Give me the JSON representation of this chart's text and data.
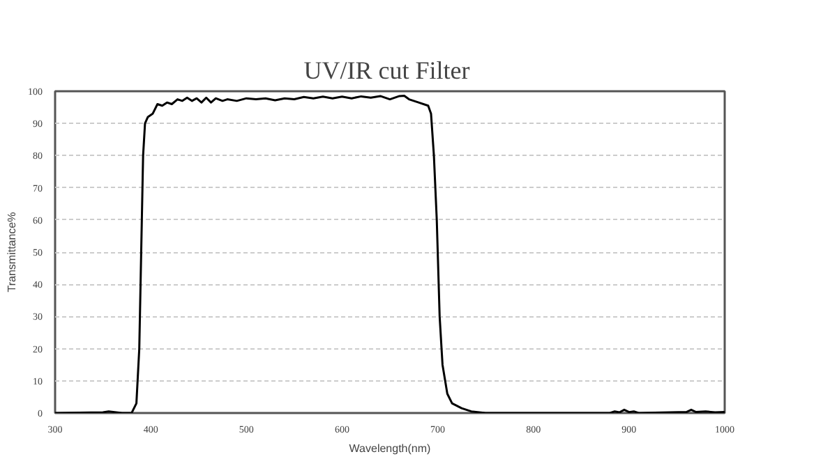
{
  "chart_data": {
    "type": "line",
    "title": "UV/IR cut  Filter",
    "xlabel": "Wavelength(nm)",
    "ylabel": "Transmittance%",
    "x": [
      300,
      350,
      356,
      370,
      380,
      385,
      388,
      390,
      392,
      394,
      397,
      402,
      407,
      412,
      417,
      422,
      428,
      433,
      438,
      443,
      448,
      453,
      458,
      463,
      468,
      475,
      480,
      490,
      500,
      510,
      520,
      530,
      540,
      550,
      560,
      570,
      580,
      590,
      600,
      610,
      620,
      630,
      640,
      650,
      660,
      665,
      670,
      680,
      690,
      693,
      696,
      699,
      702,
      705,
      710,
      715,
      725,
      735,
      750,
      800,
      880,
      885,
      890,
      895,
      900,
      905,
      910,
      960,
      965,
      970,
      980,
      990,
      1000
    ],
    "series": [
      {
        "color": "#000000",
        "values": [
          0,
          0.2,
          0.5,
          0,
          0,
          3,
          20,
          50,
          80,
          90,
          92,
          93,
          96,
          95.5,
          96.5,
          96,
          97.5,
          97,
          98,
          97,
          97.8,
          96.5,
          98,
          96.5,
          97.8,
          97,
          97.5,
          97,
          97.8,
          97.5,
          97.8,
          97.2,
          97.8,
          97.5,
          98.2,
          97.8,
          98.3,
          97.8,
          98.3,
          97.8,
          98.4,
          98,
          98.5,
          97.5,
          98.5,
          98.6,
          97.5,
          96.5,
          95.5,
          93,
          80,
          60,
          30,
          15,
          6,
          3,
          1.5,
          0.5,
          0,
          0,
          0,
          0.5,
          0.2,
          1,
          0.3,
          0.5,
          0,
          0.3,
          1,
          0.3,
          0.5,
          0.2,
          0.3
        ]
      }
    ],
    "xlim": [
      300,
      1000
    ],
    "xticks": [
      300,
      400,
      500,
      600,
      700,
      800,
      900,
      1000
    ],
    "ylim": [
      0,
      100
    ],
    "yticks": [
      0,
      10,
      20,
      30,
      40,
      50,
      60,
      70,
      80,
      90,
      100
    ],
    "grid": "y",
    "marker": "none",
    "line_style": "solid"
  }
}
